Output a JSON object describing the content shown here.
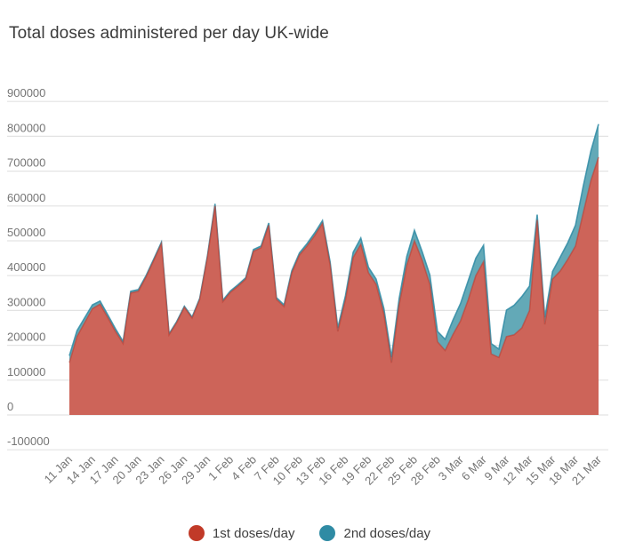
{
  "title": "Total doses administered per day UK-wide",
  "colors": {
    "first_line": "#c0392b",
    "first_fill": "#cd6459",
    "second_line": "#2f8ba4",
    "second_fill": "#63a9b7",
    "grid": "#e3e3e3",
    "axis_text": "#757575",
    "title_text": "#3b3b3b",
    "legend_text": "#3f3f3f",
    "background": "#ffffff"
  },
  "y_axis": {
    "tick_values": [
      900000,
      800000,
      700000,
      600000,
      500000,
      400000,
      300000,
      200000,
      100000,
      0,
      -100000
    ],
    "tick_labels": [
      "900000",
      "800000",
      "700000",
      "600000",
      "500000",
      "400000",
      "300000",
      "200000",
      "100000",
      "0",
      "-100000"
    ]
  },
  "legend": [
    {
      "label": "1st doses/day",
      "color": "#c13a28"
    },
    {
      "label": "2nd doses/day",
      "color": "#2f8ba4"
    }
  ],
  "chart_data": {
    "type": "area",
    "stacked": true,
    "title": "Total doses administered per day UK-wide",
    "xlabel": "",
    "ylabel": "",
    "ylim": [
      -100000,
      900000
    ],
    "grid": true,
    "legend_position": "bottom",
    "categories": [
      "11 Jan",
      "12 Jan",
      "13 Jan",
      "14 Jan",
      "15 Jan",
      "16 Jan",
      "17 Jan",
      "18 Jan",
      "19 Jan",
      "20 Jan",
      "21 Jan",
      "22 Jan",
      "23 Jan",
      "24 Jan",
      "25 Jan",
      "26 Jan",
      "27 Jan",
      "28 Jan",
      "29 Jan",
      "30 Jan",
      "31 Jan",
      "1 Feb",
      "2 Feb",
      "3 Feb",
      "4 Feb",
      "5 Feb",
      "6 Feb",
      "7 Feb",
      "8 Feb",
      "9 Feb",
      "10 Feb",
      "11 Feb",
      "12 Feb",
      "13 Feb",
      "14 Feb",
      "15 Feb",
      "16 Feb",
      "17 Feb",
      "18 Feb",
      "19 Feb",
      "20 Feb",
      "21 Feb",
      "22 Feb",
      "23 Feb",
      "24 Feb",
      "25 Feb",
      "26 Feb",
      "27 Feb",
      "28 Feb",
      "1 Mar",
      "2 Mar",
      "3 Mar",
      "4 Mar",
      "5 Mar",
      "6 Mar",
      "7 Mar",
      "8 Mar",
      "9 Mar",
      "10 Mar",
      "11 Mar",
      "12 Mar",
      "13 Mar",
      "14 Mar",
      "15 Mar",
      "16 Mar",
      "17 Mar",
      "18 Mar",
      "19 Mar",
      "20 Mar",
      "21 Mar"
    ],
    "x_tick_labels": [
      "11 Jan",
      "14 Jan",
      "17 Jan",
      "20 Jan",
      "23 Jan",
      "26 Jan",
      "29 Jan",
      "1 Feb",
      "4 Feb",
      "7 Feb",
      "10 Feb",
      "13 Feb",
      "16 Feb",
      "19 Feb",
      "22 Feb",
      "25 Feb",
      "28 Feb",
      "3 Mar",
      "6 Mar",
      "9 Mar",
      "12 Mar",
      "15 Mar",
      "18 Mar",
      "21 Mar"
    ],
    "series": [
      {
        "name": "1st doses/day",
        "values": [
          150000,
          225000,
          265000,
          305000,
          318000,
          280000,
          240000,
          205000,
          350000,
          355000,
          396000,
          444000,
          492000,
          230000,
          265000,
          309000,
          278000,
          332000,
          452000,
          600000,
          325000,
          352000,
          370000,
          390000,
          470000,
          480000,
          545000,
          332000,
          311000,
          408000,
          459000,
          485000,
          515000,
          550000,
          430000,
          240000,
          330000,
          452000,
          490000,
          408000,
          375000,
          290000,
          150000,
          316000,
          430000,
          500000,
          444000,
          375000,
          210000,
          185000,
          230000,
          270000,
          330000,
          400000,
          440000,
          175000,
          165000,
          225000,
          230000,
          250000,
          300000,
          560000,
          260000,
          390000,
          413000,
          447000,
          485000,
          580000,
          673000,
          740000
        ]
      },
      {
        "name": "2nd doses/day",
        "values": [
          20000,
          17000,
          14000,
          11000,
          9000,
          8000,
          8000,
          6000,
          5000,
          5000,
          4000,
          4000,
          4000,
          3000,
          3000,
          3000,
          3000,
          3000,
          4000,
          6000,
          4000,
          4000,
          4000,
          4000,
          5000,
          5000,
          6000,
          5000,
          5000,
          6000,
          6000,
          7000,
          8000,
          8000,
          9000,
          10000,
          12000,
          15000,
          18000,
          16000,
          15000,
          16000,
          16000,
          18000,
          25000,
          30000,
          25000,
          27000,
          30000,
          32000,
          42000,
          50000,
          55000,
          50000,
          47000,
          30000,
          24000,
          76000,
          85000,
          90000,
          70000,
          15000,
          20000,
          22000,
          40000,
          48000,
          60000,
          77000,
          85000,
          95000
        ]
      }
    ]
  }
}
